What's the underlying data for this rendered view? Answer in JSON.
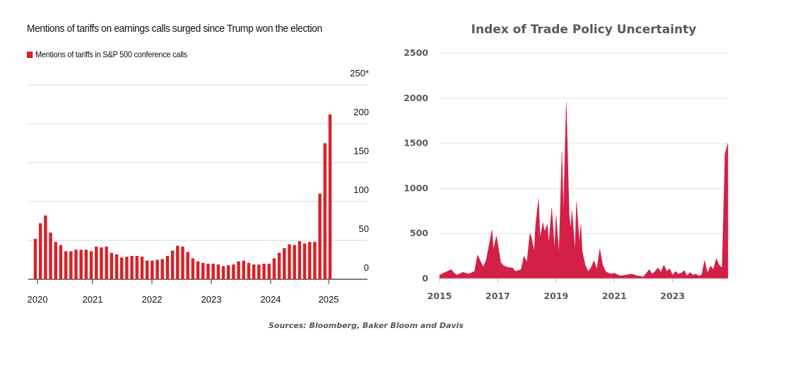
{
  "chart_data": [
    {
      "type": "bar",
      "title": "Mentions of tariffs on earnings calls surged since Trump won the election",
      "legend": [
        "Mentions of tariffs in S&P 500 conference calls"
      ],
      "legend_placement": "top-left",
      "color": "#d92128",
      "y_axis_side": "right",
      "ylim": [
        0,
        250
      ],
      "y_ticks": [
        "0",
        "50",
        "100",
        "150",
        "200",
        "250*"
      ],
      "x_tick_labels": [
        "2020",
        "2021",
        "2022",
        "2023",
        "2024",
        "2025"
      ],
      "grid": true,
      "series": [
        {
          "values": [
            52,
            72,
            82,
            60,
            48,
            44,
            36,
            36,
            38,
            38,
            38,
            36,
            42,
            41,
            42,
            34,
            32,
            28,
            29,
            30,
            30,
            29,
            24,
            24,
            25,
            26,
            30,
            37,
            43,
            42,
            35,
            27,
            23,
            21,
            20,
            20,
            19,
            17,
            18,
            19,
            23,
            24,
            21,
            19,
            19,
            20,
            20,
            27,
            34,
            40,
            45,
            44,
            49,
            46,
            48,
            48,
            110,
            175,
            212
          ]
        }
      ]
    },
    {
      "type": "area",
      "title": "Index of Trade Policy Uncertainty",
      "color": "#d41f47",
      "xlim": [
        2015,
        2024.9
      ],
      "ylim": [
        0,
        2500
      ],
      "y_ticks": [
        "0",
        "500",
        "1000",
        "1500",
        "2000",
        "2500"
      ],
      "x_tick_labels": [
        "2015",
        "2017",
        "2019",
        "2021",
        "2023"
      ],
      "grid": true,
      "series": [
        {
          "x": [
            2015.0,
            2015.2,
            2015.4,
            2015.5,
            2015.6,
            2015.8,
            2016.0,
            2016.2,
            2016.3,
            2016.5,
            2016.6,
            2016.8,
            2016.85,
            2016.95,
            2017.0,
            2017.1,
            2017.2,
            2017.4,
            2017.5,
            2017.6,
            2017.8,
            2017.9,
            2018.0,
            2018.1,
            2018.15,
            2018.25,
            2018.3,
            2018.4,
            2018.45,
            2018.55,
            2018.6,
            2018.7,
            2018.75,
            2018.85,
            2018.95,
            2019.0,
            2019.1,
            2019.2,
            2019.25,
            2019.35,
            2019.45,
            2019.5,
            2019.55,
            2019.65,
            2019.7,
            2019.8,
            2019.85,
            2019.9,
            2020.0,
            2020.1,
            2020.2,
            2020.3,
            2020.4,
            2020.5,
            2020.6,
            2020.7,
            2020.8,
            2020.9,
            2021.0,
            2021.2,
            2021.4,
            2021.6,
            2021.8,
            2022.0,
            2022.1,
            2022.2,
            2022.3,
            2022.4,
            2022.5,
            2022.6,
            2022.7,
            2022.8,
            2022.9,
            2023.0,
            2023.1,
            2023.2,
            2023.3,
            2023.4,
            2023.5,
            2023.6,
            2023.7,
            2023.8,
            2023.9,
            2024.0,
            2024.1,
            2024.2,
            2024.3,
            2024.4,
            2024.5,
            2024.6,
            2024.7,
            2024.8,
            2024.9
          ],
          "y": [
            40,
            70,
            100,
            60,
            40,
            70,
            50,
            80,
            260,
            130,
            200,
            540,
            320,
            470,
            380,
            180,
            140,
            120,
            120,
            80,
            100,
            250,
            180,
            500,
            460,
            300,
            600,
            880,
            450,
            620,
            520,
            600,
            380,
            780,
            320,
            700,
            280,
            1400,
            720,
            1950,
            700,
            550,
            750,
            300,
            850,
            400,
            600,
            300,
            150,
            80,
            120,
            200,
            100,
            330,
            150,
            80,
            60,
            50,
            60,
            30,
            40,
            50,
            30,
            20,
            60,
            100,
            50,
            80,
            120,
            70,
            150,
            80,
            110,
            40,
            80,
            50,
            60,
            90,
            30,
            70,
            40,
            50,
            30,
            40,
            200,
            60,
            140,
            100,
            220,
            150,
            120,
            1380,
            1500
          ]
        }
      ]
    }
  ],
  "footer": {
    "sources": "Sources: Bloomberg, Baker Bloom and Davis"
  }
}
